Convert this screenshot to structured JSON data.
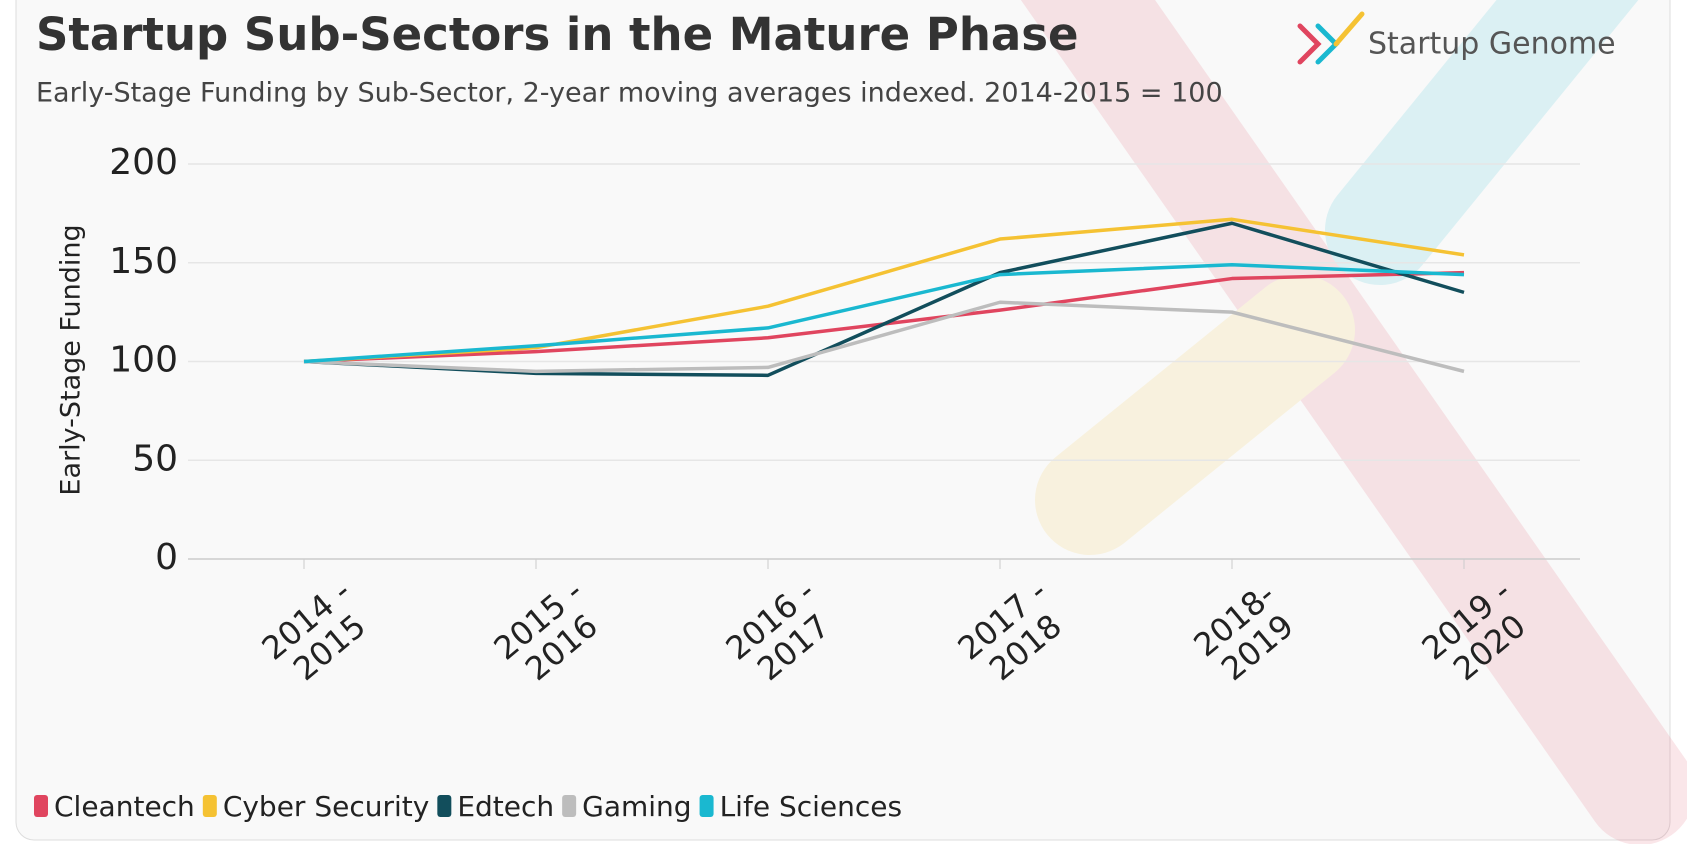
{
  "chart_data": {
    "type": "line",
    "title": "Startup Sub-Sectors in the Mature Phase",
    "subtitle": "Early-Stage Funding by Sub-Sector, 2-year moving averages indexed. 2014-2015 = 100",
    "brand": "Startup Genome",
    "y_label": "Early-Stage Funding",
    "categories": [
      "2014 - 2015",
      "2015 - 2016",
      "2016 - 2017",
      "2017 - 2018",
      "2018- 2019",
      "2019 - 2020"
    ],
    "series": [
      {
        "name": "Cleantech",
        "color": "#e0455f",
        "values": [
          100,
          105,
          112,
          126,
          142,
          145
        ]
      },
      {
        "name": "Cyber Security",
        "color": "#f5c233",
        "values": [
          100,
          107,
          128,
          162,
          172,
          154
        ]
      },
      {
        "name": "Edtech",
        "color": "#124e5c",
        "values": [
          100,
          94,
          93,
          145,
          170,
          135
        ]
      },
      {
        "name": "Gaming",
        "color": "#bdbdbd",
        "values": [
          100,
          95,
          97,
          130,
          125,
          95
        ]
      },
      {
        "name": "Life Sciences",
        "color": "#1ab8d0",
        "values": [
          100,
          108,
          117,
          144,
          149,
          144
        ]
      }
    ],
    "ylim": [
      0,
      200
    ],
    "yticks": [
      0,
      50,
      100,
      150,
      200
    ],
    "grid": true
  }
}
